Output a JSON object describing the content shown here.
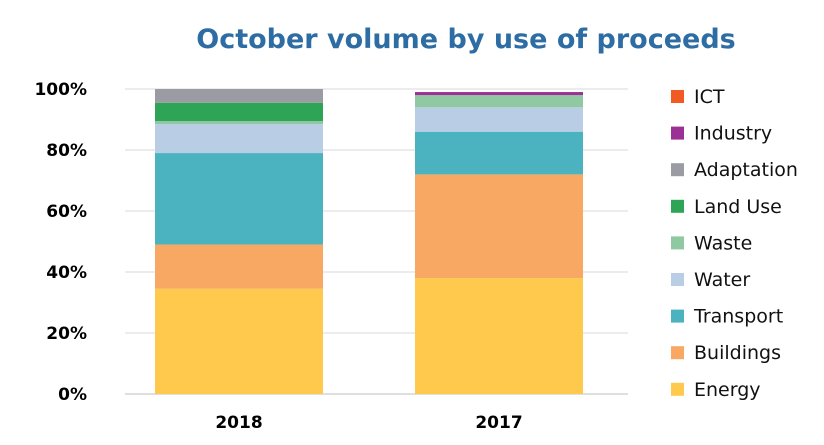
{
  "chart_data": {
    "type": "bar",
    "stacked": true,
    "title": "October volume by use of proceeds",
    "categories": [
      "2018",
      "2017"
    ],
    "ylim": [
      0,
      100
    ],
    "yticks": [
      "0%",
      "20%",
      "40%",
      "60%",
      "80%",
      "100%"
    ],
    "grid": true,
    "legend_position": "right",
    "series": [
      {
        "name": "Energy",
        "color": "#FFC94D",
        "values": [
          34.5,
          38
        ]
      },
      {
        "name": "Buildings",
        "color": "#F8A862",
        "values": [
          14.5,
          34
        ]
      },
      {
        "name": "Transport",
        "color": "#4BB3C0",
        "values": [
          30,
          14
        ]
      },
      {
        "name": "Water",
        "color": "#B9CDE5",
        "values": [
          9.5,
          8
        ]
      },
      {
        "name": "Waste",
        "color": "#8FC8A1",
        "values": [
          1,
          4
        ]
      },
      {
        "name": "Land Use",
        "color": "#2EA556",
        "values": [
          6,
          0
        ]
      },
      {
        "name": "Adaptation",
        "color": "#9B9CA3",
        "values": [
          4.5,
          0
        ]
      },
      {
        "name": "Industry",
        "color": "#9B3096",
        "values": [
          0,
          1
        ]
      },
      {
        "name": "ICT",
        "color": "#F15A22",
        "values": [
          0,
          0
        ]
      }
    ],
    "legend_order": [
      "ICT",
      "Industry",
      "Adaptation",
      "Land Use",
      "Waste",
      "Water",
      "Transport",
      "Buildings",
      "Energy"
    ]
  }
}
